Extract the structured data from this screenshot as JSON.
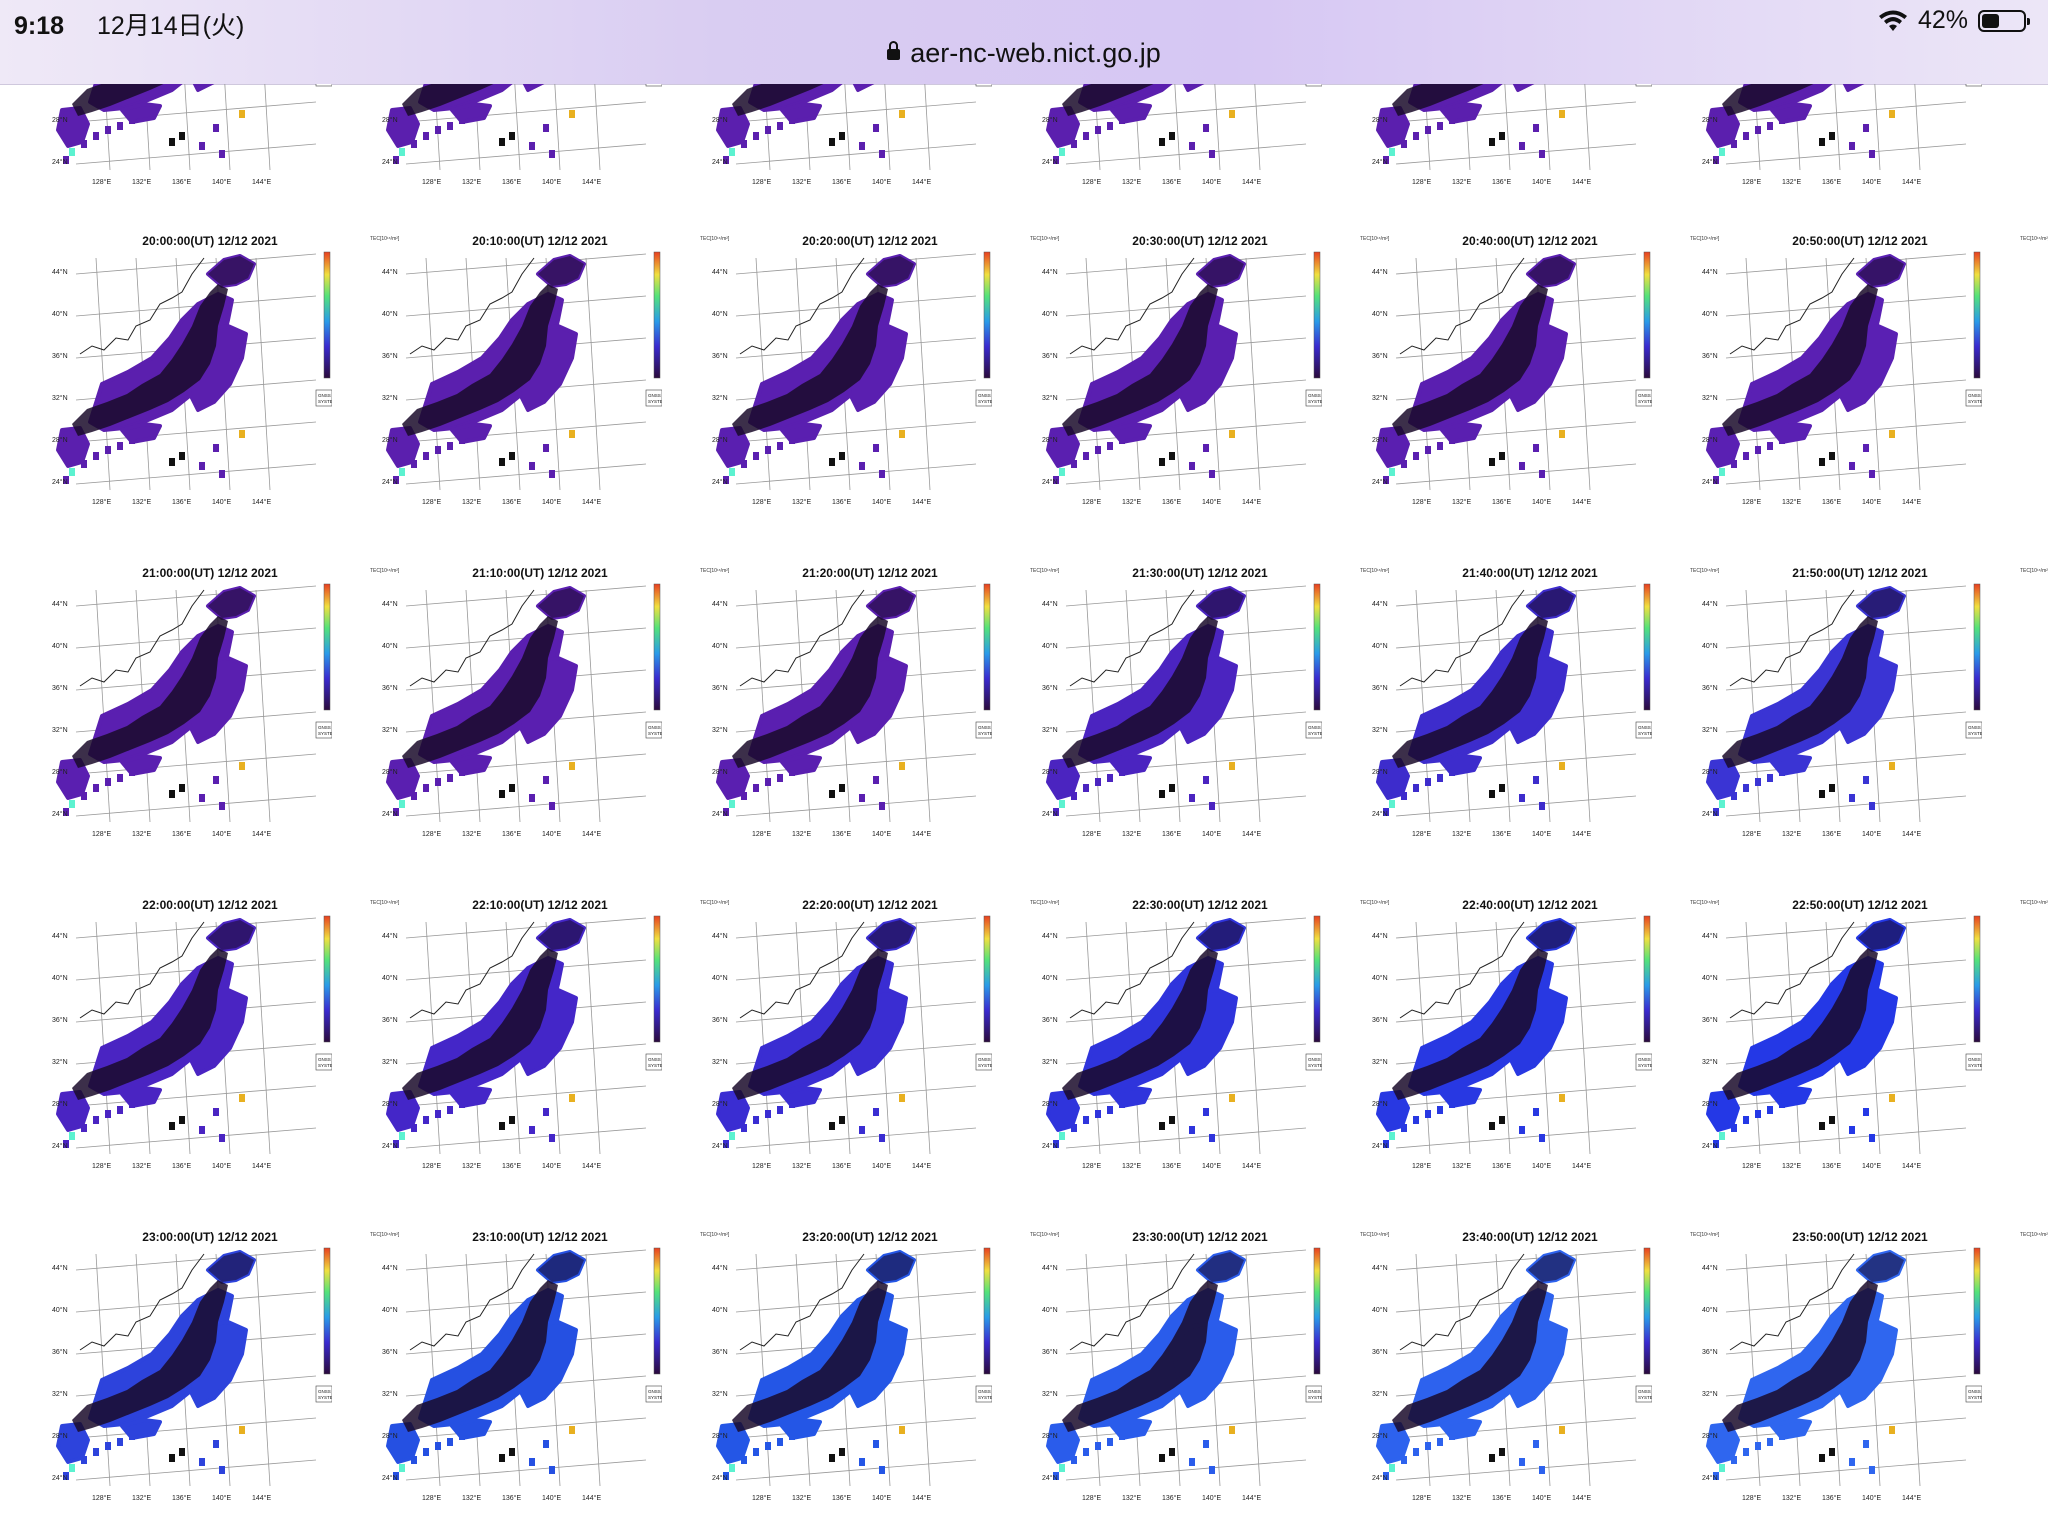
{
  "status_bar": {
    "time": "9:18",
    "date": "12月14日(火)",
    "battery": "42%",
    "battery_level": 0.42,
    "icons": [
      "wifi-icon",
      "battery-icon"
    ]
  },
  "address_bar": {
    "url": "aer-nc-web.nict.go.jp",
    "icon": "lock-icon"
  },
  "map_axes": {
    "lat_labels": [
      "44°N",
      "40°N",
      "36°N",
      "32°N",
      "28°N",
      "24°N"
    ],
    "lon_labels": [
      "128°E",
      "132°E",
      "136°E",
      "140°E",
      "144°E"
    ]
  },
  "unit_label": "TEC[10¹⁶/m²]",
  "system_label": [
    "GNSS",
    "SYSTEM"
  ],
  "rows": [
    {
      "panels": [
        {
          "title": "",
          "color": "#5b1fae"
        },
        {
          "title": "",
          "color": "#5b1fae"
        },
        {
          "title": "",
          "color": "#5b1fae"
        },
        {
          "title": "",
          "color": "#5b1fae"
        },
        {
          "title": "",
          "color": "#5b1fae"
        },
        {
          "title": "",
          "color": "#5b1fae"
        }
      ]
    },
    {
      "panels": [
        {
          "title": "20:00:00(UT) 12/12 2021",
          "color": "#5b1fae"
        },
        {
          "title": "20:10:00(UT) 12/12 2021",
          "color": "#5b1fae"
        },
        {
          "title": "20:20:00(UT) 12/12 2021",
          "color": "#5a1fb0"
        },
        {
          "title": "20:30:00(UT) 12/12 2021",
          "color": "#5a1fb0"
        },
        {
          "title": "20:40:00(UT) 12/12 2021",
          "color": "#5a1fb0"
        },
        {
          "title": "20:50:00(UT) 12/12 2021",
          "color": "#5a20b3"
        }
      ]
    },
    {
      "panels": [
        {
          "title": "21:00:00(UT) 12/12 2021",
          "color": "#5a1fb0"
        },
        {
          "title": "21:10:00(UT) 12/12 2021",
          "color": "#5a1fb0"
        },
        {
          "title": "21:20:00(UT) 12/12 2021",
          "color": "#5a1fb0"
        },
        {
          "title": "21:30:00(UT) 12/12 2021",
          "color": "#4b24c0"
        },
        {
          "title": "21:40:00(UT) 12/12 2021",
          "color": "#3d2ccc"
        },
        {
          "title": "21:50:00(UT) 12/12 2021",
          "color": "#3a34d4"
        }
      ]
    },
    {
      "panels": [
        {
          "title": "22:00:00(UT) 12/12 2021",
          "color": "#4a24c2"
        },
        {
          "title": "22:10:00(UT) 12/12 2021",
          "color": "#4426c8"
        },
        {
          "title": "22:20:00(UT) 12/12 2021",
          "color": "#3a2dd2"
        },
        {
          "title": "22:30:00(UT) 12/12 2021",
          "color": "#2f34dc"
        },
        {
          "title": "22:40:00(UT) 12/12 2021",
          "color": "#2838e2"
        },
        {
          "title": "22:50:00(UT) 12/12 2021",
          "color": "#2438e6"
        }
      ]
    },
    {
      "panels": [
        {
          "title": "23:00:00(UT) 12/12 2021",
          "color": "#2d43dc"
        },
        {
          "title": "23:10:00(UT) 12/12 2021",
          "color": "#2550e2"
        },
        {
          "title": "23:20:00(UT) 12/12 2021",
          "color": "#2456e6"
        },
        {
          "title": "23:30:00(UT) 12/12 2021",
          "color": "#2a5ceb"
        },
        {
          "title": "23:40:00(UT) 12/12 2021",
          "color": "#2d62ee"
        },
        {
          "title": "23:50:00(UT) 12/12 2021",
          "color": "#2f66ef"
        }
      ]
    }
  ]
}
